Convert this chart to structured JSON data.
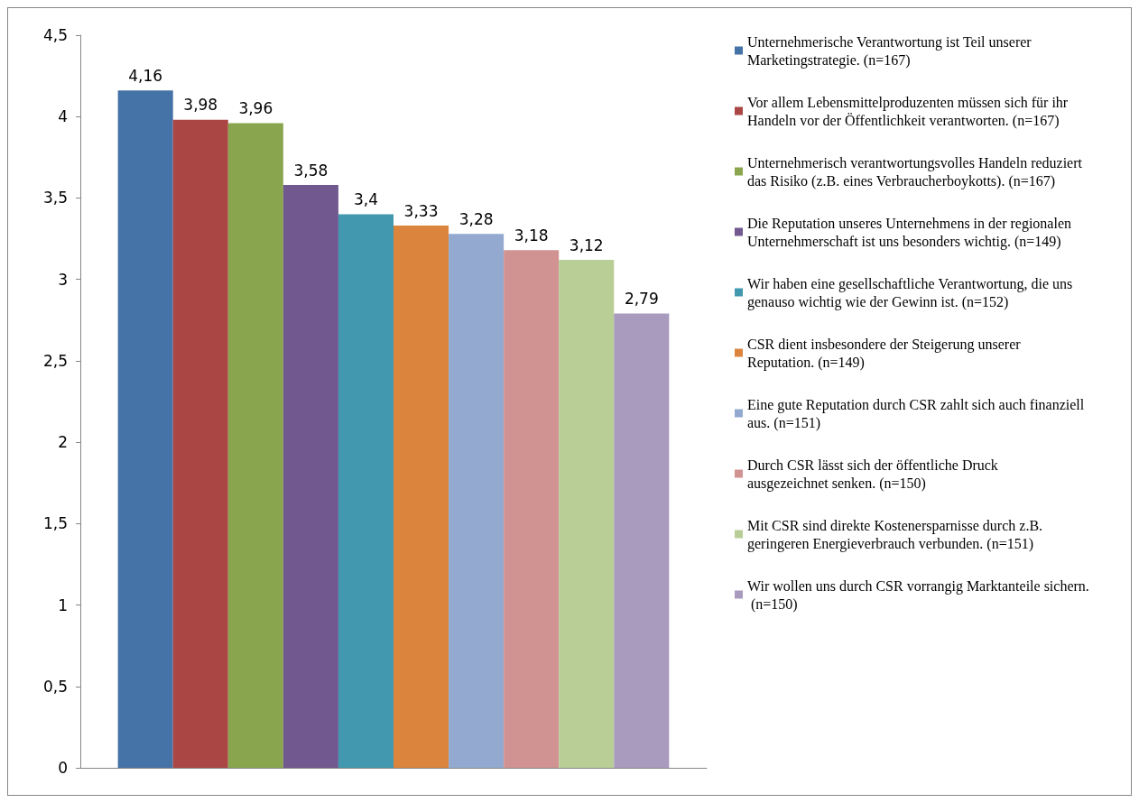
{
  "chart_data": {
    "type": "bar",
    "categories": [
      null
    ],
    "ylim": [
      0,
      4.5
    ],
    "yticks": [
      0,
      {
        "value": 0.5,
        "label": "0,5"
      },
      1,
      {
        "value": 1.5,
        "label": "1,5"
      },
      2,
      {
        "value": 2.5,
        "label": "2,5"
      },
      3,
      {
        "value": 3.5,
        "label": "3,5"
      },
      4,
      {
        "value": 4.5,
        "label": "4,5"
      }
    ],
    "grid": false,
    "legend": "right",
    "series": [
      {
        "name": "Unternehmerische Verantwortung ist Teil unserer Marketingstrategie. (n=167)",
        "color": "#4572a7",
        "values": [
          4.16
        ],
        "value_labels": [
          "4,16"
        ]
      },
      {
        "name": "Vor allem Lebensmittelproduzenten müssen sich für ihr Handeln vor der Öffentlichkeit verantworten. (n=167)",
        "color": "#aa4643",
        "values": [
          3.98
        ],
        "value_labels": [
          "3,98"
        ]
      },
      {
        "name": "Unternehmerisch verantwortungsvolles Handeln reduziert das Risiko (z.B. eines Verbraucherboykotts). (n=167)",
        "color": "#89a54e",
        "values": [
          3.96
        ],
        "value_labels": [
          "3,96"
        ]
      },
      {
        "name": "Die Reputation unseres Unternehmens in der regionalen Unternehmerschaft ist uns besonders wichtig. (n=149)",
        "color": "#71588f",
        "values": [
          3.58
        ],
        "value_labels": [
          "3,58"
        ]
      },
      {
        "name": "Wir haben eine gesellschaftliche Verantwortung, die uns genauso wichtig wie der Gewinn ist. (n=152)",
        "color": "#4198af",
        "values": [
          3.4
        ],
        "value_labels": [
          "3,4"
        ]
      },
      {
        "name": "CSR dient insbesondere der Steigerung unserer Reputation. (n=149)",
        "color": "#db843d",
        "values": [
          3.33
        ],
        "value_labels": [
          "3,33"
        ]
      },
      {
        "name": "Eine gute Reputation durch CSR zahlt sich auch finanziell aus. (n=151)",
        "color": "#93a9cf",
        "values": [
          3.28
        ],
        "value_labels": [
          "3,28"
        ]
      },
      {
        "name": "Durch CSR lässt sich der öffentliche Druck ausgezeichnet senken. (n=150)",
        "color": "#d19392",
        "values": [
          3.18
        ],
        "value_labels": [
          "3,18"
        ]
      },
      {
        "name": "Mit CSR sind direkte Kostenersparnisse durch z.B. geringeren Energieverbrauch verbunden. (n=151)",
        "color": "#b9cd96",
        "values": [
          3.12
        ],
        "value_labels": [
          "3,12"
        ]
      },
      {
        "name": "Wir wollen uns durch CSR vorrangig Marktanteile sichern. (n=150)",
        "color": "#a99bbd",
        "values": [
          2.79
        ],
        "value_labels": [
          "2,79"
        ]
      }
    ]
  }
}
